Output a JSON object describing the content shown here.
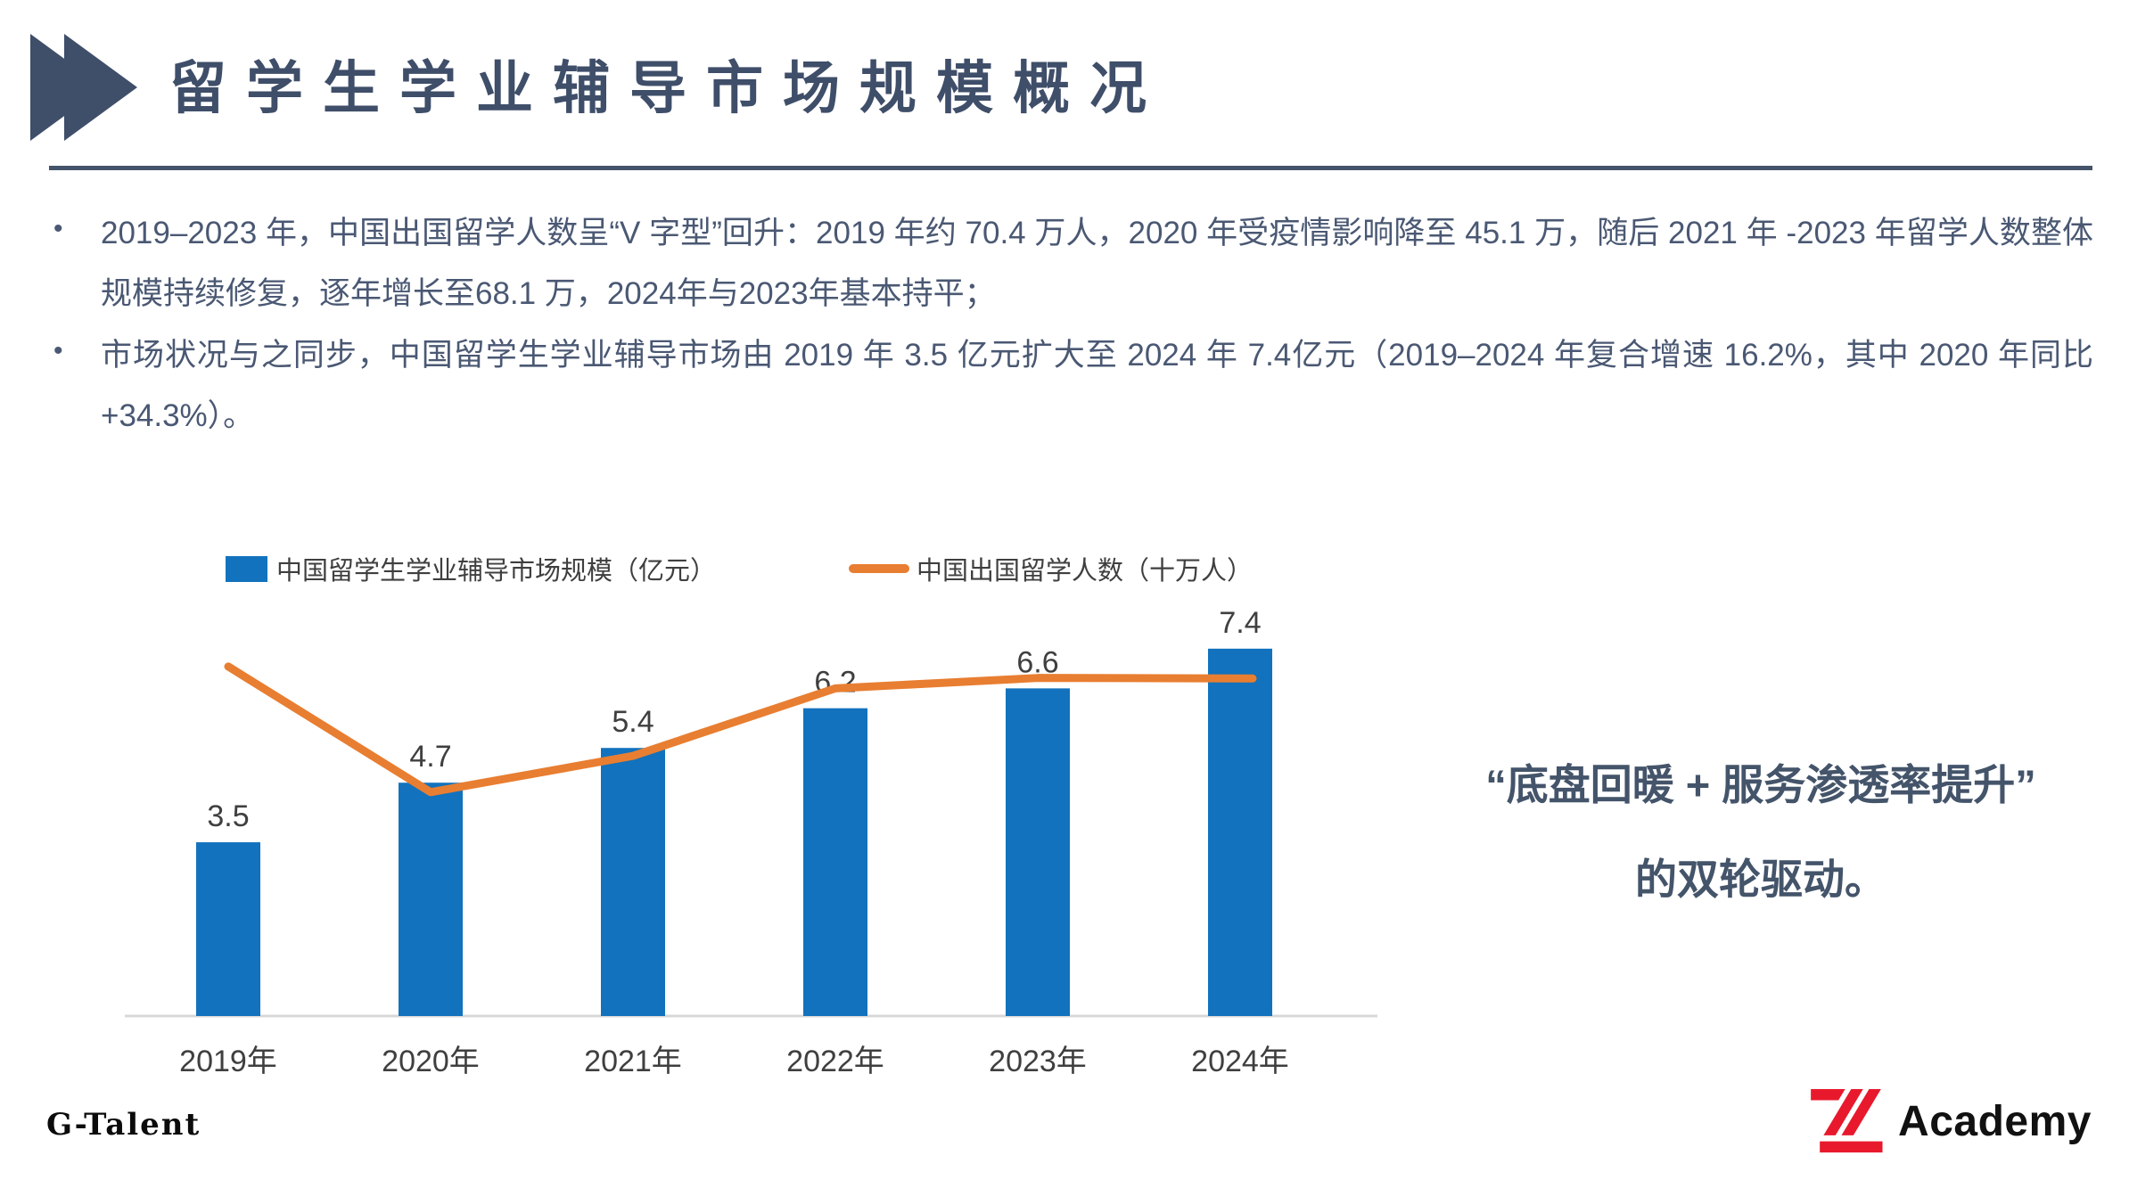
{
  "slide": {
    "title": "留学生学业辅导市场规模概况",
    "bullets": [
      "2019–2023 年，中国出国留学人数呈“V 字型”回升：2019 年约 70.4 万人，2020 年受疫情影响降至 45.1 万，随后 2021 年 -2023 年留学人数整体规模持续修复，逐年增长至68.1 万，2024年与2023年基本持平；",
      "市场状况与之同步，中国留学生学业辅导市场由 2019 年 3.5 亿元扩大至 2024 年 7.4亿元（2019–2024 年复合增速 16.2%，其中 2020 年同比 +34.3%）。"
    ],
    "quote_line1": "“底盘回暖 + 服务渗透率提升”",
    "quote_line2": "的双轮驱动。",
    "footer_left": "G-Talent",
    "footer_right_brand": "Academy"
  },
  "colors": {
    "title_navy": "#3F4E69",
    "accent_navy": "#44546A",
    "bar_blue": "#1272BD",
    "line_orange": "#E87E31",
    "label_gray": "#3F3F3F",
    "axis_gray": "#D8D8D8",
    "logo_red": "#E8192C"
  },
  "chart_data": {
    "type": "bar",
    "subtype": "bar+line combo",
    "categories": [
      "2019年",
      "2020年",
      "2021年",
      "2022年",
      "2023年",
      "2024年"
    ],
    "series": [
      {
        "name": "中国留学生学业辅导市场规模（亿元）",
        "type": "bar",
        "color": "#1272BD",
        "values": [
          3.5,
          4.7,
          5.4,
          6.2,
          6.6,
          7.4
        ],
        "labels": [
          "3.5",
          "4.7",
          "5.4",
          "6.2",
          "6.6",
          "7.4"
        ]
      },
      {
        "name": "中国出国留学人数（十万人）",
        "type": "line",
        "color": "#E87E31",
        "values": [
          7.04,
          4.51,
          5.24,
          6.6,
          6.81,
          6.8
        ]
      }
    ],
    "ylim": [
      0,
      8.2
    ],
    "xlabel": "",
    "ylabel": "",
    "grid": false,
    "legend_position": "top",
    "value_labels_on_bars": true
  }
}
